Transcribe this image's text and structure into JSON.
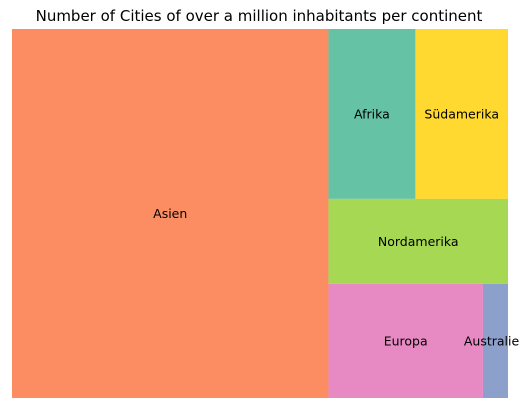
{
  "chart_data": {
    "type": "treemap",
    "title": "Number of Cities of over a million inhabitants per continent",
    "categories": [
      "Asien",
      "Afrika",
      "Südamerika",
      "Nordamerika",
      "Europa",
      "Australien"
    ],
    "values": [
      245,
      31,
      33,
      32,
      37,
      6
    ],
    "colors": [
      "#fc8d62",
      "#66c2a5",
      "#ffd92f",
      "#a6d854",
      "#e78ac3",
      "#8da0cb"
    ]
  }
}
